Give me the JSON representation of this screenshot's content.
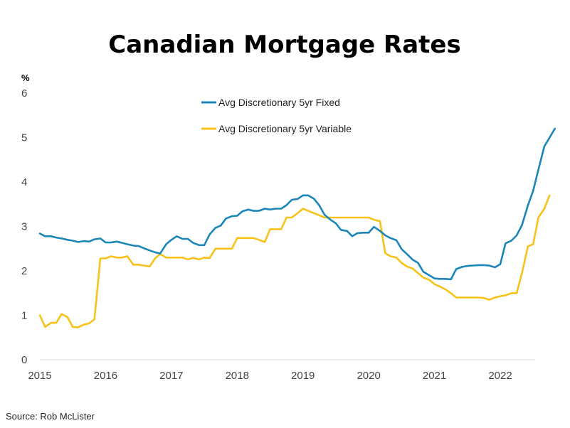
{
  "chart_data": {
    "type": "line",
    "title": "Canadian Mortgage Rates",
    "xlabel": "",
    "ylabel": "%",
    "xlim": [
      2015,
      2022.75
    ],
    "ylim": [
      0,
      6
    ],
    "x_ticks": [
      2015,
      2016,
      2017,
      2018,
      2019,
      2020,
      2021,
      2022
    ],
    "y_ticks": [
      0,
      1,
      2,
      3,
      4,
      5,
      6
    ],
    "grid": false,
    "legend_position": "top-center",
    "source": "Source: Rob McLister",
    "series": [
      {
        "name": "Avg Discretionary 5yr Fixed",
        "color": "#1B86B8",
        "points": [
          [
            2015.0,
            2.84
          ],
          [
            2015.08,
            2.78
          ],
          [
            2015.17,
            2.78
          ],
          [
            2015.25,
            2.75
          ],
          [
            2015.33,
            2.73
          ],
          [
            2015.42,
            2.7
          ],
          [
            2015.5,
            2.68
          ],
          [
            2015.58,
            2.65
          ],
          [
            2015.67,
            2.67
          ],
          [
            2015.75,
            2.66
          ],
          [
            2015.83,
            2.71
          ],
          [
            2015.92,
            2.73
          ],
          [
            2016.0,
            2.64
          ],
          [
            2016.08,
            2.64
          ],
          [
            2016.17,
            2.66
          ],
          [
            2016.25,
            2.63
          ],
          [
            2016.33,
            2.6
          ],
          [
            2016.42,
            2.57
          ],
          [
            2016.5,
            2.56
          ],
          [
            2016.58,
            2.51
          ],
          [
            2016.67,
            2.46
          ],
          [
            2016.75,
            2.42
          ],
          [
            2016.83,
            2.39
          ],
          [
            2016.92,
            2.6
          ],
          [
            2017.0,
            2.7
          ],
          [
            2017.08,
            2.78
          ],
          [
            2017.17,
            2.72
          ],
          [
            2017.25,
            2.72
          ],
          [
            2017.33,
            2.63
          ],
          [
            2017.42,
            2.58
          ],
          [
            2017.5,
            2.58
          ],
          [
            2017.58,
            2.82
          ],
          [
            2017.67,
            2.97
          ],
          [
            2017.75,
            3.02
          ],
          [
            2017.83,
            3.18
          ],
          [
            2017.92,
            3.23
          ],
          [
            2018.0,
            3.24
          ],
          [
            2018.08,
            3.34
          ],
          [
            2018.17,
            3.38
          ],
          [
            2018.25,
            3.35
          ],
          [
            2018.33,
            3.35
          ],
          [
            2018.42,
            3.4
          ],
          [
            2018.5,
            3.38
          ],
          [
            2018.58,
            3.4
          ],
          [
            2018.67,
            3.4
          ],
          [
            2018.75,
            3.48
          ],
          [
            2018.83,
            3.6
          ],
          [
            2018.92,
            3.62
          ],
          [
            2019.0,
            3.7
          ],
          [
            2019.08,
            3.7
          ],
          [
            2019.17,
            3.62
          ],
          [
            2019.25,
            3.47
          ],
          [
            2019.33,
            3.26
          ],
          [
            2019.42,
            3.15
          ],
          [
            2019.5,
            3.07
          ],
          [
            2019.58,
            2.92
          ],
          [
            2019.67,
            2.9
          ],
          [
            2019.75,
            2.78
          ],
          [
            2019.83,
            2.85
          ],
          [
            2019.92,
            2.86
          ],
          [
            2020.0,
            2.86
          ],
          [
            2020.08,
            2.99
          ],
          [
            2020.17,
            2.9
          ],
          [
            2020.25,
            2.8
          ],
          [
            2020.33,
            2.74
          ],
          [
            2020.42,
            2.69
          ],
          [
            2020.5,
            2.49
          ],
          [
            2020.58,
            2.38
          ],
          [
            2020.67,
            2.25
          ],
          [
            2020.75,
            2.18
          ],
          [
            2020.83,
            1.98
          ],
          [
            2020.92,
            1.9
          ],
          [
            2021.0,
            1.83
          ],
          [
            2021.08,
            1.82
          ],
          [
            2021.17,
            1.82
          ],
          [
            2021.25,
            1.81
          ],
          [
            2021.33,
            2.04
          ],
          [
            2021.42,
            2.09
          ],
          [
            2021.5,
            2.11
          ],
          [
            2021.58,
            2.12
          ],
          [
            2021.67,
            2.13
          ],
          [
            2021.75,
            2.13
          ],
          [
            2021.83,
            2.12
          ],
          [
            2021.92,
            2.08
          ],
          [
            2022.0,
            2.15
          ],
          [
            2022.08,
            2.62
          ],
          [
            2022.17,
            2.68
          ],
          [
            2022.25,
            2.8
          ],
          [
            2022.33,
            3.03
          ],
          [
            2022.42,
            3.47
          ],
          [
            2022.5,
            3.8
          ],
          [
            2022.58,
            4.28
          ],
          [
            2022.67,
            4.8
          ],
          [
            2022.75,
            5.0
          ],
          [
            2022.83,
            5.2
          ]
        ]
      },
      {
        "name": "Avg Discretionary 5yr Variable",
        "color": "#F7C21A",
        "points": [
          [
            2015.0,
            1.0
          ],
          [
            2015.08,
            0.74
          ],
          [
            2015.17,
            0.83
          ],
          [
            2015.25,
            0.83
          ],
          [
            2015.33,
            1.03
          ],
          [
            2015.42,
            0.96
          ],
          [
            2015.5,
            0.74
          ],
          [
            2015.58,
            0.73
          ],
          [
            2015.67,
            0.79
          ],
          [
            2015.75,
            0.82
          ],
          [
            2015.83,
            0.91
          ],
          [
            2015.92,
            2.28
          ],
          [
            2016.0,
            2.28
          ],
          [
            2016.08,
            2.33
          ],
          [
            2016.17,
            2.3
          ],
          [
            2016.25,
            2.3
          ],
          [
            2016.33,
            2.33
          ],
          [
            2016.42,
            2.14
          ],
          [
            2016.5,
            2.14
          ],
          [
            2016.58,
            2.12
          ],
          [
            2016.67,
            2.1
          ],
          [
            2016.75,
            2.28
          ],
          [
            2016.83,
            2.38
          ],
          [
            2016.92,
            2.3
          ],
          [
            2017.0,
            2.3
          ],
          [
            2017.08,
            2.3
          ],
          [
            2017.17,
            2.3
          ],
          [
            2017.25,
            2.26
          ],
          [
            2017.33,
            2.29
          ],
          [
            2017.42,
            2.26
          ],
          [
            2017.5,
            2.3
          ],
          [
            2017.58,
            2.29
          ],
          [
            2017.67,
            2.5
          ],
          [
            2017.75,
            2.5
          ],
          [
            2017.83,
            2.5
          ],
          [
            2017.92,
            2.5
          ],
          [
            2018.0,
            2.74
          ],
          [
            2018.08,
            2.74
          ],
          [
            2018.17,
            2.74
          ],
          [
            2018.25,
            2.74
          ],
          [
            2018.33,
            2.7
          ],
          [
            2018.42,
            2.65
          ],
          [
            2018.5,
            2.94
          ],
          [
            2018.58,
            2.94
          ],
          [
            2018.67,
            2.94
          ],
          [
            2018.75,
            3.2
          ],
          [
            2018.83,
            3.2
          ],
          [
            2018.92,
            3.3
          ],
          [
            2019.0,
            3.4
          ],
          [
            2019.08,
            3.35
          ],
          [
            2019.17,
            3.3
          ],
          [
            2019.25,
            3.25
          ],
          [
            2019.33,
            3.2
          ],
          [
            2019.42,
            3.2
          ],
          [
            2019.5,
            3.2
          ],
          [
            2019.58,
            3.2
          ],
          [
            2019.67,
            3.2
          ],
          [
            2019.75,
            3.2
          ],
          [
            2019.83,
            3.2
          ],
          [
            2019.92,
            3.2
          ],
          [
            2020.0,
            3.2
          ],
          [
            2020.08,
            3.15
          ],
          [
            2020.17,
            3.12
          ],
          [
            2020.25,
            2.4
          ],
          [
            2020.33,
            2.33
          ],
          [
            2020.42,
            2.3
          ],
          [
            2020.5,
            2.18
          ],
          [
            2020.58,
            2.1
          ],
          [
            2020.67,
            2.05
          ],
          [
            2020.75,
            1.95
          ],
          [
            2020.83,
            1.85
          ],
          [
            2020.92,
            1.8
          ],
          [
            2021.0,
            1.7
          ],
          [
            2021.08,
            1.65
          ],
          [
            2021.17,
            1.58
          ],
          [
            2021.25,
            1.5
          ],
          [
            2021.33,
            1.4
          ],
          [
            2021.42,
            1.4
          ],
          [
            2021.5,
            1.4
          ],
          [
            2021.58,
            1.4
          ],
          [
            2021.67,
            1.4
          ],
          [
            2021.75,
            1.39
          ],
          [
            2021.83,
            1.35
          ],
          [
            2021.92,
            1.4
          ],
          [
            2022.0,
            1.43
          ],
          [
            2022.08,
            1.45
          ],
          [
            2022.17,
            1.5
          ],
          [
            2022.25,
            1.5
          ],
          [
            2022.33,
            1.95
          ],
          [
            2022.42,
            2.55
          ],
          [
            2022.5,
            2.6
          ],
          [
            2022.58,
            3.2
          ],
          [
            2022.67,
            3.4
          ],
          [
            2022.75,
            3.7
          ]
        ]
      }
    ]
  }
}
